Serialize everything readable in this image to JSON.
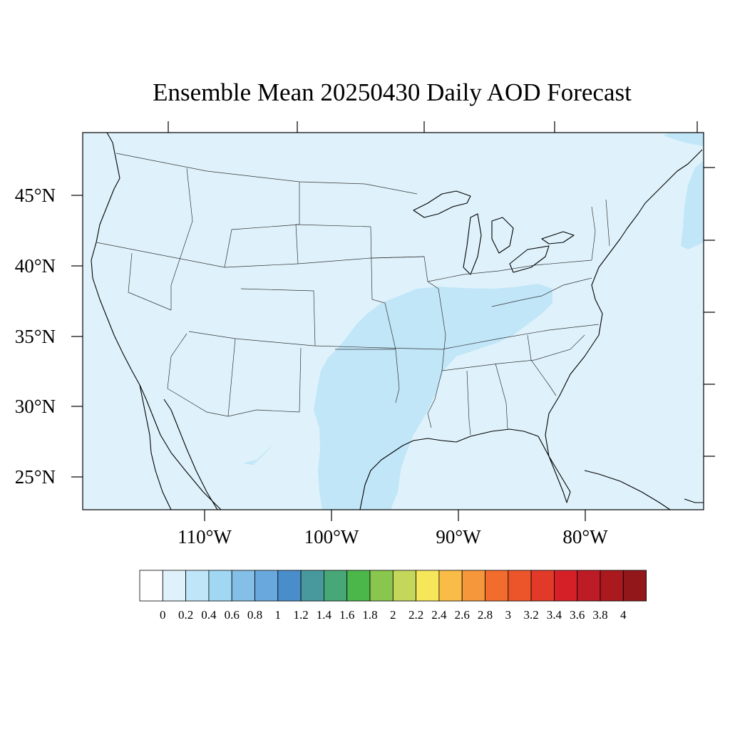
{
  "title": "Ensemble Mean 20250430 Daily AOD Forecast",
  "map": {
    "background_color": "#dff2fb",
    "plume_color": "#c0e6f8",
    "lat_labels": [
      "45°N",
      "40°N",
      "35°N",
      "30°N",
      "25°N"
    ],
    "lon_labels": [
      "110°W",
      "100°W",
      "90°W",
      "80°W"
    ]
  },
  "colorbar": {
    "colors": [
      "#ffffff",
      "#dff2fb",
      "#bfe6f8",
      "#a0d8f4",
      "#83bfe6",
      "#69a8dc",
      "#4a8dcb",
      "#48999d",
      "#48a777",
      "#4bb64a",
      "#89c64e",
      "#c4d75a",
      "#f6e65a",
      "#f8bc47",
      "#f6973b",
      "#f26c2d",
      "#ec5429",
      "#e13a28",
      "#d52028",
      "#bd1b25",
      "#a9191e",
      "#92171b"
    ],
    "labels": [
      "0",
      "0.2",
      "0.4",
      "0.6",
      "0.8",
      "1",
      "1.2",
      "1.4",
      "1.6",
      "1.8",
      "2",
      "2.2",
      "2.4",
      "2.6",
      "2.8",
      "3",
      "3.2",
      "3.4",
      "3.6",
      "3.8",
      "4"
    ]
  }
}
